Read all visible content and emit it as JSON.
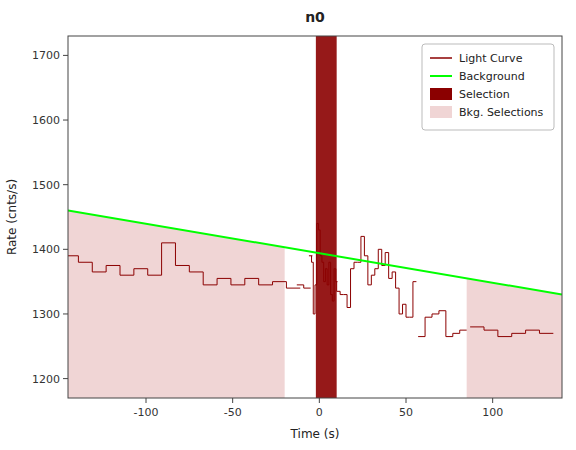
{
  "chart_data": {
    "type": "step",
    "title": "n0",
    "x_label": "Time (s)",
    "y_label": "Rate (cnts/s)",
    "xlim": [
      -145,
      140
    ],
    "ylim": [
      1170,
      1730
    ],
    "xticks": [
      -100,
      -50,
      0,
      50,
      100
    ],
    "yticks": [
      1200,
      1300,
      1400,
      1500,
      1600,
      1700
    ],
    "grid": false,
    "legend": "upper right",
    "series": [
      {
        "name": "Light Curve",
        "type": "step",
        "color": "#8B0000",
        "x": [
          -143,
          -135,
          -127,
          -119,
          -111,
          -103,
          -95,
          -87,
          -79,
          -71,
          -63,
          -55,
          -47,
          -39,
          -31,
          -23,
          -15,
          -11,
          -7,
          -5,
          -4,
          -3,
          -2,
          -1,
          0,
          1,
          2,
          3,
          4,
          5,
          6,
          7,
          8,
          9,
          10,
          11,
          13,
          15,
          17,
          19,
          21,
          23,
          25,
          27,
          29,
          31,
          33,
          35,
          37,
          39,
          41,
          43,
          45,
          47,
          49,
          51,
          53,
          55,
          59,
          63,
          67,
          71,
          75,
          79,
          83,
          91,
          99,
          107,
          115,
          123,
          131
        ],
        "values": [
          1390,
          1380,
          1365,
          1375,
          1360,
          1370,
          1360,
          1410,
          1375,
          1365,
          1345,
          1355,
          1345,
          1355,
          1345,
          1350,
          1340,
          1345,
          1340,
          1390,
          1380,
          1300,
          1345,
          1440,
          1430,
          1390,
          1380,
          1350,
          1370,
          1345,
          1380,
          1330,
          1320,
          1370,
          1350,
          1335,
          1330,
          1330,
          1310,
          1370,
          1380,
          1380,
          1420,
          1390,
          1345,
          1360,
          1370,
          1400,
          1375,
          1395,
          1355,
          1365,
          1340,
          1300,
          1315,
          1295,
          1295,
          1350,
          1265,
          1295,
          1300,
          1305,
          1265,
          1270,
          1275,
          1280,
          1275,
          1265,
          1270,
          1275,
          1270
        ],
        "widths": [
          8,
          8,
          8,
          8,
          8,
          8,
          8,
          8,
          8,
          8,
          8,
          8,
          8,
          8,
          8,
          8,
          8,
          4,
          4,
          2,
          1,
          1,
          1,
          1,
          1,
          1,
          1,
          1,
          1,
          1,
          1,
          1,
          1,
          1,
          1,
          2,
          2,
          2,
          2,
          2,
          2,
          2,
          2,
          2,
          2,
          2,
          2,
          2,
          2,
          2,
          2,
          2,
          2,
          2,
          2,
          2,
          2,
          2,
          4,
          4,
          4,
          4,
          4,
          4,
          4,
          8,
          8,
          8,
          8,
          8,
          8
        ]
      },
      {
        "name": "Background",
        "type": "line",
        "color": "#00ff00",
        "x": [
          -145,
          140
        ],
        "values": [
          1460.265,
          1330.02
        ]
      },
      {
        "name": "Selection",
        "type": "span",
        "color": "#8B0000",
        "x": [
          -2,
          10
        ]
      },
      {
        "name": "Bkg. Selections",
        "type": "area",
        "color": "#f0d5d5",
        "regions": [
          {
            "x": [
              -145,
              -20
            ],
            "values": [
              1460.265,
              1403.14
            ]
          },
          {
            "x": [
              85,
              140
            ],
            "values": [
              1355.155,
              1330.02
            ]
          }
        ]
      }
    ]
  }
}
